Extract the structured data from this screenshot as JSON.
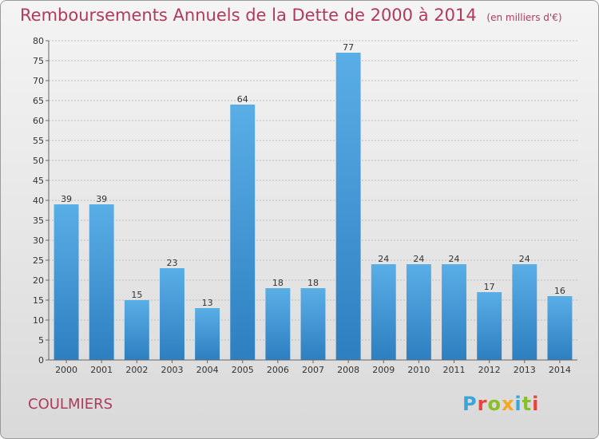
{
  "header": {
    "title": "Remboursements Annuels de la Dette de 2000 à 2014",
    "unit": "(en milliers d'€)"
  },
  "footer": {
    "commune": "COULMIERS",
    "logo_text": "Proxiti",
    "logo_colors": [
      "#3aa5d9",
      "#e8463a",
      "#8bbf2a",
      "#f5a623",
      "#3aa5d9",
      "#8bbf2a",
      "#e8463a"
    ]
  },
  "colors": {
    "title": "#b03a5b",
    "bar_top": "#5aaee6",
    "bar_bottom": "#2d7fc0",
    "grid": "#bdbdbd",
    "axis": "#666666"
  },
  "chart_data": {
    "type": "bar",
    "title": "Remboursements Annuels de la Dette de 2000 à 2014",
    "subtitle": "(en milliers d'€)",
    "xlabel": "",
    "ylabel": "",
    "categories": [
      "2000",
      "2001",
      "2002",
      "2003",
      "2004",
      "2005",
      "2006",
      "2007",
      "2008",
      "2009",
      "2010",
      "2011",
      "2012",
      "2013",
      "2014"
    ],
    "values": [
      39,
      39,
      15,
      23,
      13,
      64,
      18,
      18,
      77,
      24,
      24,
      24,
      17,
      24,
      16
    ],
    "ylim": [
      0,
      80
    ],
    "yticks": [
      0,
      5,
      10,
      15,
      20,
      25,
      30,
      35,
      40,
      45,
      50,
      55,
      60,
      65,
      70,
      75,
      80
    ],
    "grid": true,
    "data_labels": true
  }
}
